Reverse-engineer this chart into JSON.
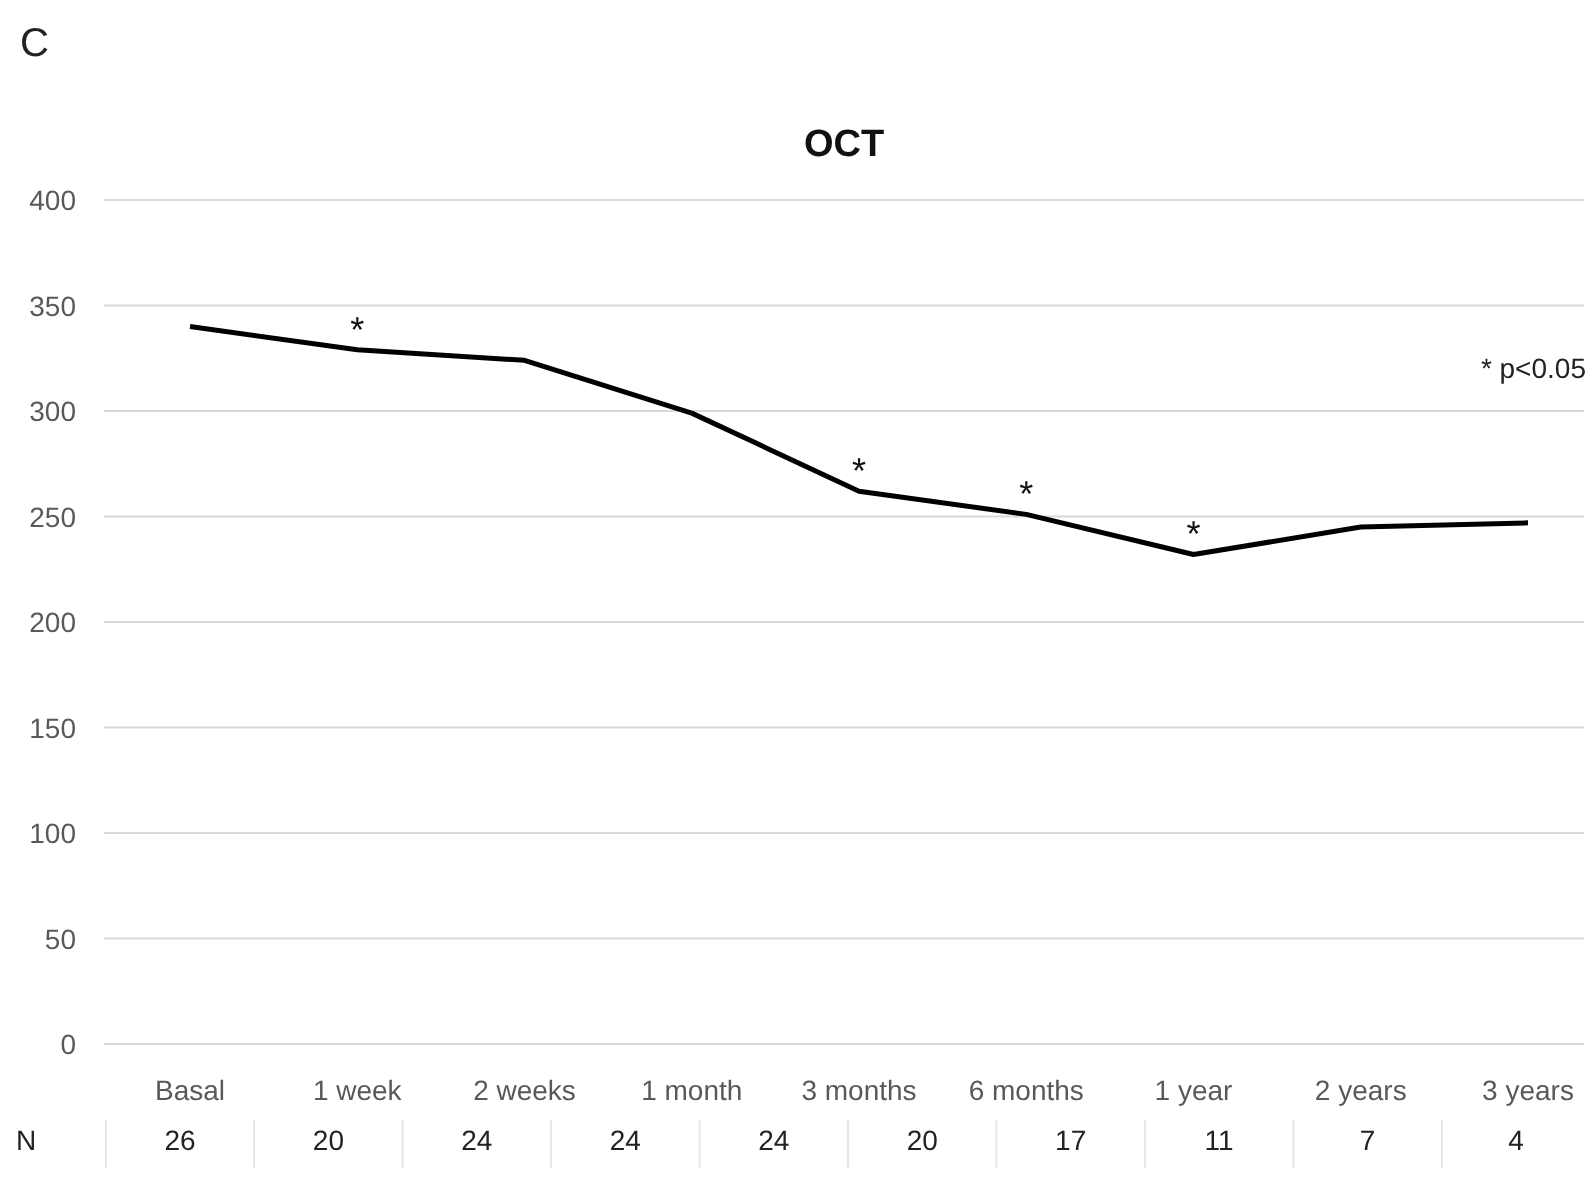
{
  "chart_data": {
    "type": "line",
    "title": "OCT",
    "categories": [
      "Basal",
      "1 week",
      "2 weeks",
      "1 month",
      "3 months",
      "6 months",
      "1 year",
      "2 years",
      "3 years"
    ],
    "series": [
      {
        "color": "#000000",
        "values": [
          340,
          329,
          324,
          299,
          262,
          251,
          232,
          245,
          247
        ]
      }
    ],
    "ylim": [
      0,
      400
    ],
    "yticks": [
      0,
      50,
      100,
      150,
      200,
      250,
      300,
      350,
      400
    ],
    "grid": "y",
    "marker": "none",
    "line_style": "solid",
    "annotations": [
      "C",
      "* p<0.05",
      "N",
      {
        "text": "*",
        "x": "1 week",
        "y": 329
      },
      {
        "text": "*",
        "x": "3 months",
        "y": 262
      },
      {
        "text": "*",
        "x": "6 months",
        "y": 251
      },
      {
        "text": "*",
        "x": "1 year",
        "y": 232
      },
      "26",
      "20",
      "24",
      "24",
      "24",
      "20",
      "17",
      "11",
      "7",
      "4"
    ]
  }
}
